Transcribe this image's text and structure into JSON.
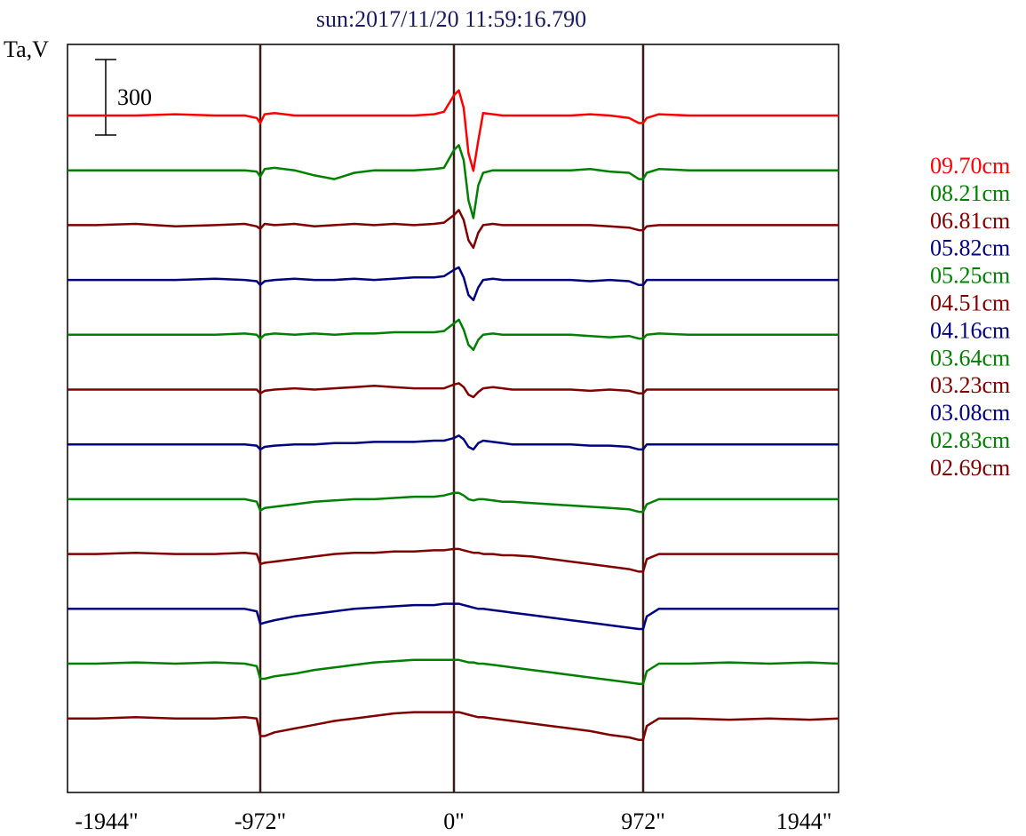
{
  "chart_data": {
    "type": "line",
    "title": "sun:2017/11/20 11:59:16.790",
    "title_color": "#1a1a5e",
    "ylabel": "Ta,V",
    "scale_bar_label": "300",
    "scale_bar_value": 300,
    "xlim": [
      -1944,
      1944
    ],
    "x_ticks": [
      {
        "value": -1944,
        "label": "-1944\""
      },
      {
        "value": -972,
        "label": "-972\""
      },
      {
        "value": 0,
        "label": "0\""
      },
      {
        "value": 972,
        "label": "972\""
      },
      {
        "value": 1944,
        "label": "1944\""
      }
    ],
    "vertical_lines": [
      -972,
      0,
      972
    ],
    "vertical_line_color": "#3d1a1a",
    "legend_position": "right",
    "x": [
      -1944,
      -1800,
      -1600,
      -1400,
      -1200,
      -1050,
      -990,
      -972,
      -950,
      -900,
      -800,
      -700,
      -600,
      -500,
      -400,
      -300,
      -200,
      -100,
      -50,
      0,
      25,
      50,
      75,
      100,
      125,
      150,
      200,
      250,
      300,
      400,
      500,
      600,
      700,
      800,
      900,
      950,
      972,
      990,
      1050,
      1200,
      1400,
      1600,
      1800,
      1944
    ],
    "series": [
      {
        "name": "09.70cm",
        "color": "#ff0000",
        "baseline": 0,
        "values": [
          0,
          0,
          0,
          5,
          0,
          0,
          -10,
          -30,
          5,
          10,
          0,
          0,
          0,
          0,
          0,
          0,
          0,
          5,
          15,
          80,
          100,
          30,
          -150,
          -220,
          -100,
          10,
          5,
          0,
          0,
          0,
          0,
          0,
          5,
          0,
          -10,
          -30,
          -30,
          -10,
          5,
          0,
          0,
          0,
          0,
          0
        ]
      },
      {
        "name": "08.21cm",
        "color": "#008000",
        "baseline": 0,
        "values": [
          0,
          0,
          0,
          0,
          0,
          0,
          -5,
          -25,
          5,
          10,
          0,
          -20,
          -35,
          -10,
          0,
          0,
          0,
          5,
          10,
          80,
          100,
          40,
          -120,
          -190,
          -60,
          -10,
          0,
          0,
          0,
          0,
          0,
          0,
          5,
          -5,
          -10,
          -35,
          -35,
          -10,
          5,
          0,
          0,
          0,
          0,
          0
        ]
      },
      {
        "name": "06.81cm",
        "color": "#800000",
        "baseline": 0,
        "values": [
          0,
          0,
          5,
          -5,
          0,
          5,
          -5,
          -15,
          5,
          0,
          5,
          -5,
          0,
          5,
          0,
          5,
          0,
          5,
          10,
          40,
          60,
          20,
          -60,
          -90,
          -30,
          0,
          5,
          0,
          0,
          0,
          0,
          0,
          0,
          -5,
          -10,
          -20,
          -20,
          -5,
          0,
          0,
          0,
          0,
          0,
          0
        ]
      },
      {
        "name": "05.82cm",
        "color": "#000080",
        "baseline": 0,
        "values": [
          0,
          0,
          0,
          0,
          5,
          0,
          -5,
          -20,
          -5,
          0,
          5,
          0,
          0,
          5,
          0,
          5,
          10,
          10,
          15,
          40,
          50,
          10,
          -60,
          -80,
          -30,
          0,
          5,
          0,
          0,
          0,
          0,
          0,
          -5,
          0,
          -5,
          -20,
          -20,
          0,
          0,
          0,
          0,
          0,
          0,
          0
        ]
      },
      {
        "name": "05.25cm",
        "color": "#008000",
        "baseline": 0,
        "values": [
          0,
          0,
          0,
          0,
          0,
          5,
          0,
          -15,
          0,
          5,
          0,
          5,
          0,
          5,
          5,
          10,
          10,
          10,
          15,
          45,
          60,
          20,
          -40,
          -60,
          -20,
          0,
          5,
          0,
          0,
          0,
          0,
          0,
          -5,
          -10,
          -5,
          -15,
          -15,
          0,
          5,
          0,
          0,
          0,
          0,
          0
        ]
      },
      {
        "name": "04.51cm",
        "color": "#800000",
        "baseline": 0,
        "values": [
          0,
          0,
          0,
          0,
          0,
          0,
          0,
          -15,
          -5,
          0,
          5,
          0,
          5,
          10,
          15,
          10,
          5,
          5,
          5,
          20,
          25,
          10,
          -20,
          -30,
          -10,
          5,
          10,
          5,
          0,
          0,
          0,
          0,
          -5,
          0,
          -5,
          -15,
          -15,
          0,
          0,
          0,
          0,
          0,
          0,
          0
        ]
      },
      {
        "name": "04.16cm",
        "color": "#000080",
        "baseline": 0,
        "values": [
          0,
          0,
          0,
          0,
          0,
          0,
          -5,
          -20,
          -10,
          -5,
          0,
          0,
          5,
          5,
          10,
          10,
          10,
          15,
          15,
          25,
          35,
          20,
          -10,
          -20,
          5,
          15,
          10,
          5,
          0,
          0,
          0,
          0,
          -5,
          -5,
          -10,
          -20,
          -20,
          0,
          0,
          0,
          0,
          0,
          0,
          0
        ]
      },
      {
        "name": "03.64cm",
        "color": "#008000",
        "baseline": 0,
        "values": [
          0,
          0,
          0,
          0,
          0,
          0,
          -10,
          -45,
          -35,
          -30,
          -20,
          -10,
          -5,
          0,
          0,
          5,
          10,
          10,
          15,
          25,
          25,
          15,
          0,
          -5,
          0,
          0,
          -5,
          -10,
          -10,
          -15,
          -20,
          -25,
          -30,
          -35,
          -40,
          -50,
          -50,
          -20,
          0,
          0,
          0,
          0,
          0,
          0
        ]
      },
      {
        "name": "03.23cm",
        "color": "#800000",
        "baseline": 0,
        "values": [
          0,
          0,
          5,
          0,
          0,
          5,
          0,
          -40,
          -35,
          -30,
          -20,
          -10,
          0,
          5,
          5,
          10,
          10,
          15,
          15,
          20,
          20,
          15,
          10,
          5,
          5,
          0,
          0,
          -5,
          -5,
          -10,
          -20,
          -30,
          -40,
          -50,
          -60,
          -70,
          -70,
          -20,
          0,
          0,
          0,
          0,
          0,
          0
        ]
      },
      {
        "name": "03.08cm",
        "color": "#000080",
        "baseline": 0,
        "values": [
          0,
          0,
          0,
          0,
          0,
          0,
          -10,
          -60,
          -55,
          -45,
          -30,
          -20,
          -10,
          0,
          5,
          10,
          15,
          15,
          20,
          20,
          20,
          15,
          10,
          5,
          0,
          0,
          -5,
          -10,
          -15,
          -25,
          -35,
          -45,
          -55,
          -65,
          -75,
          -80,
          -80,
          -30,
          0,
          0,
          0,
          0,
          0,
          0
        ]
      },
      {
        "name": "02.83cm",
        "color": "#008000",
        "baseline": 0,
        "values": [
          0,
          0,
          5,
          0,
          5,
          0,
          -10,
          -60,
          -60,
          -50,
          -40,
          -25,
          -15,
          -5,
          5,
          10,
          15,
          15,
          15,
          15,
          15,
          10,
          5,
          5,
          0,
          0,
          -5,
          -10,
          -15,
          -25,
          -35,
          -45,
          -55,
          -65,
          -75,
          -80,
          -80,
          -30,
          0,
          0,
          5,
          0,
          5,
          0
        ]
      },
      {
        "name": "02.69cm",
        "color": "#800000",
        "baseline": 0,
        "values": [
          0,
          0,
          5,
          0,
          0,
          5,
          0,
          -70,
          -70,
          -55,
          -40,
          -25,
          -10,
          0,
          10,
          20,
          25,
          25,
          25,
          25,
          25,
          20,
          15,
          10,
          5,
          5,
          0,
          -5,
          -10,
          -20,
          -30,
          -40,
          -50,
          -65,
          -75,
          -85,
          -85,
          -30,
          0,
          0,
          -5,
          0,
          -5,
          0
        ]
      }
    ]
  }
}
